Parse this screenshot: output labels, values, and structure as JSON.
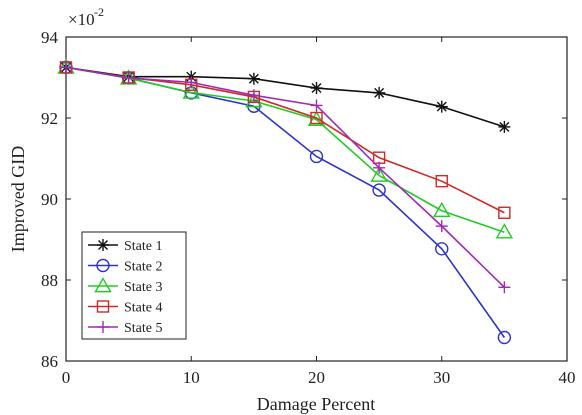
{
  "chart_data": {
    "type": "line",
    "xlabel": "Damage Percent",
    "ylabel": "Improved GID",
    "multiplier_label": {
      "base": "×10",
      "exponent": "-2"
    },
    "xlim": [
      0,
      40
    ],
    "ylim": [
      86,
      94
    ],
    "xticks": [
      "0",
      "10",
      "20",
      "30",
      "40"
    ],
    "yticks": [
      "86",
      "88",
      "90",
      "92",
      "94"
    ],
    "grid": false,
    "legend_position": "bottom-left",
    "x": [
      0,
      5,
      10,
      15,
      20,
      25,
      30,
      35
    ],
    "series": [
      {
        "name": "State 1",
        "color": "#111111",
        "marker": "asterisk",
        "values": [
          93.25,
          93.02,
          93.02,
          92.97,
          92.74,
          92.62,
          92.28,
          91.78
        ]
      },
      {
        "name": "State 2",
        "color": "#2f34c8",
        "marker": "circle",
        "values": [
          93.25,
          92.99,
          92.62,
          92.29,
          91.05,
          90.22,
          88.77,
          86.58
        ]
      },
      {
        "name": "State 3",
        "color": "#22cc22",
        "marker": "triangle",
        "values": [
          93.25,
          92.98,
          92.63,
          92.42,
          91.96,
          90.58,
          89.71,
          89.18
        ]
      },
      {
        "name": "State 4",
        "color": "#cc2a2a",
        "marker": "square",
        "values": [
          93.25,
          93.0,
          92.82,
          92.52,
          92.0,
          91.02,
          90.44,
          89.66
        ]
      },
      {
        "name": "State 5",
        "color": "#a02ab8",
        "marker": "plus",
        "values": [
          93.25,
          92.99,
          92.88,
          92.56,
          92.31,
          90.77,
          89.33,
          87.82
        ]
      }
    ]
  }
}
